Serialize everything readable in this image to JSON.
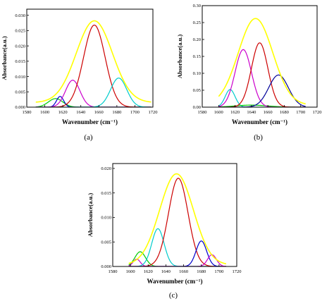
{
  "figure": {
    "panels": [
      {
        "id": "a",
        "label": "(a)",
        "xlabel": "Wavenumber (cm⁻¹)",
        "ylabel": "Absorbance(a.u.)"
      },
      {
        "id": "b",
        "label": "(b)",
        "xlabel": "Wavenumber (cm⁻¹)",
        "ylabel": "Absorbance(a.u.)"
      },
      {
        "id": "c",
        "label": "(c)",
        "xlabel": "Wavenumber (cm⁻¹)",
        "ylabel": "Absorbance(a.u.)"
      }
    ]
  },
  "chart_data": [
    {
      "type": "line",
      "panel": "a",
      "xlabel": "Wavenumber (cm⁻¹)",
      "ylabel": "Absorbance(a.u.)",
      "xlim": [
        1580,
        1720
      ],
      "ylim": [
        0,
        0.032
      ],
      "xticks": [
        1580,
        1600,
        1620,
        1640,
        1660,
        1680,
        1700,
        1720
      ],
      "yticks": [
        0.0,
        0.005,
        0.01,
        0.015,
        0.02,
        0.025,
        0.03
      ],
      "ytick_labels": [
        "0.000",
        "0.005",
        "0.010",
        "0.015",
        "0.020",
        "0.025",
        "0.030"
      ],
      "x_range": [
        1590,
        1718
      ],
      "series": [
        {
          "color": "#00cc00",
          "center": 1612,
          "height": 0.0028,
          "width": 8
        },
        {
          "color": "#0000cc",
          "center": 1617,
          "height": 0.0035,
          "width": 4
        },
        {
          "color": "#cc00cc",
          "center": 1631,
          "height": 0.0088,
          "width": 8
        },
        {
          "color": "#cc0000",
          "center": 1655,
          "height": 0.0268,
          "width": 12
        },
        {
          "color": "#00cccc",
          "center": 1682,
          "height": 0.0095,
          "width": 9
        },
        {
          "color": "#ffff00",
          "center": 1655,
          "height": 0.0282,
          "width": 20,
          "baseline": 0.0015,
          "envelope": true
        }
      ]
    },
    {
      "type": "line",
      "panel": "b",
      "xlabel": "Wavenumber (cm⁻¹)",
      "ylabel": "Absorbance(a.u.)",
      "xlim": [
        1580,
        1720
      ],
      "ylim": [
        0,
        0.3
      ],
      "xticks": [
        1580,
        1600,
        1620,
        1640,
        1660,
        1680,
        1700,
        1720
      ],
      "yticks": [
        0.0,
        0.05,
        0.1,
        0.15,
        0.2,
        0.25,
        0.3
      ],
      "ytick_labels": [
        "0.00",
        "0.05",
        "0.10",
        "0.15",
        "0.20",
        "0.25",
        "0.30"
      ],
      "x_range": [
        1600,
        1706
      ],
      "series": [
        {
          "color": "#00cccc",
          "center": 1614,
          "height": 0.052,
          "width": 6
        },
        {
          "color": "#00cc00",
          "center": 1640,
          "height": 0.006,
          "width": 20
        },
        {
          "color": "#cc00cc",
          "center": 1630,
          "height": 0.17,
          "width": 10
        },
        {
          "color": "#cc0000",
          "center": 1650,
          "height": 0.19,
          "width": 10
        },
        {
          "color": "#000099",
          "center": 1673,
          "height": 0.095,
          "width": 12
        },
        {
          "color": "#ffff00",
          "center": 1645,
          "height": 0.262,
          "width": 21,
          "baseline": 0.006,
          "envelope": true
        }
      ]
    },
    {
      "type": "line",
      "panel": "c",
      "xlabel": "Wavenumber (cm⁻¹)",
      "ylabel": "Absorbance(a.u.)",
      "xlim": [
        1580,
        1720
      ],
      "ylim": [
        0,
        0.021
      ],
      "xticks": [
        1580,
        1600,
        1620,
        1640,
        1660,
        1680,
        1700,
        1720
      ],
      "yticks": [
        0.0,
        0.005,
        0.01,
        0.015,
        0.02
      ],
      "ytick_labels": [
        "0.000",
        "0.005",
        "0.010",
        "0.015",
        "0.020"
      ],
      "x_range": [
        1598,
        1708
      ],
      "series": [
        {
          "color": "#00cc00",
          "center": 1611,
          "height": 0.003,
          "width": 6
        },
        {
          "color": "#cc00cc",
          "center": 1607,
          "height": 0.0015,
          "width": 4
        },
        {
          "color": "#00cccc",
          "center": 1631,
          "height": 0.0077,
          "width": 7
        },
        {
          "color": "#cc0000",
          "center": 1654,
          "height": 0.018,
          "width": 11
        },
        {
          "color": "#0000cc",
          "center": 1680,
          "height": 0.0052,
          "width": 6
        },
        {
          "color": "#cc00cc",
          "center": 1692,
          "height": 0.0024,
          "width": 5
        },
        {
          "color": "#ffff00",
          "center": 1652,
          "height": 0.0189,
          "width": 19,
          "baseline": 0.0003,
          "envelope": true
        }
      ]
    }
  ]
}
